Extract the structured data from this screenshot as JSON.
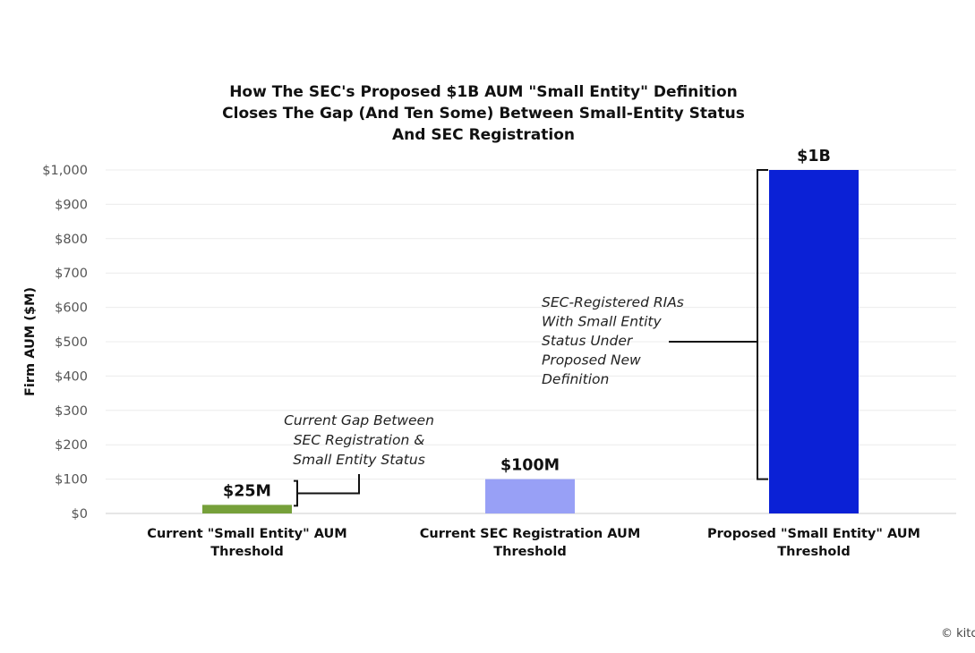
{
  "chart_data": {
    "type": "bar",
    "title": [
      "How The SEC's Proposed $1B AUM \"Small Entity\" Definition",
      "Closes The Gap (And Ten Some) Between Small-Entity Status",
      "And SEC Registration"
    ],
    "ylabel": "Firm AUM ($M)",
    "xlabel": "",
    "ylim": [
      0,
      1000
    ],
    "yticks": [
      0,
      100,
      200,
      300,
      400,
      500,
      600,
      700,
      800,
      900,
      1000
    ],
    "ytick_labels": [
      "$0",
      "$100",
      "$200",
      "$300",
      "$400",
      "$500",
      "$600",
      "$700",
      "$800",
      "$900",
      "$1,000"
    ],
    "grid": true,
    "categories": [
      [
        "Current \"Small Entity\" AUM",
        "Threshold"
      ],
      [
        "Current SEC Registration AUM",
        "Threshold"
      ],
      [
        "Proposed \"Small Entity\" AUM",
        "Threshold"
      ]
    ],
    "values": [
      25,
      100,
      1000
    ],
    "value_labels": [
      "$25M",
      "$100M",
      "$1B"
    ],
    "colors": [
      "#76a03a",
      "#98a0f6",
      "#0b21d6"
    ],
    "annotations": [
      {
        "lines": [
          "Current Gap Between",
          "SEC Registration &",
          "Small Entity Status"
        ],
        "range": [
          25,
          100
        ]
      },
      {
        "lines": [
          "SEC-Registered RIAs",
          "With Small Entity",
          "Status Under",
          "Proposed New",
          "Definition"
        ],
        "range": [
          100,
          1000
        ]
      }
    ]
  },
  "copyright": "© kitc"
}
